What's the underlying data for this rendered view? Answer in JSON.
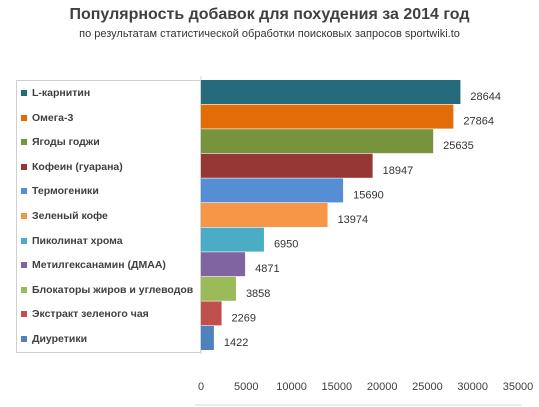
{
  "chart_data": {
    "type": "bar",
    "orientation": "horizontal",
    "title": "Популярность добавок для похудения за 2014 год",
    "subtitle": "по результатам статистической обработки поисковых запросов sportwiki.to",
    "xlabel": "",
    "ylabel": "",
    "xlim": [
      0,
      35000
    ],
    "xticks": [
      0,
      5000,
      10000,
      15000,
      20000,
      25000,
      30000,
      35000
    ],
    "grid": false,
    "legend_position": "left",
    "categories": [
      "L-карнитин",
      "Омега-3",
      "Ягоды годжи",
      "Кофеин (гуарана)",
      "Термогеники",
      "Зеленый кофе",
      "Пиколинат хрома",
      "Метилгексанамин (ДМАА)",
      "Блокаторы жиров и углеводов",
      "Экстракт зеленого чая",
      "Диуретики"
    ],
    "values": [
      28644,
      27864,
      25635,
      18947,
      15690,
      13974,
      6950,
      4871,
      3858,
      2269,
      1422
    ],
    "colors": [
      "#266b7b",
      "#e36c09",
      "#77933c",
      "#953735",
      "#558ed5",
      "#f79646",
      "#4bacc6",
      "#8064a2",
      "#9bbb59",
      "#c0504d",
      "#4f81bd"
    ]
  }
}
